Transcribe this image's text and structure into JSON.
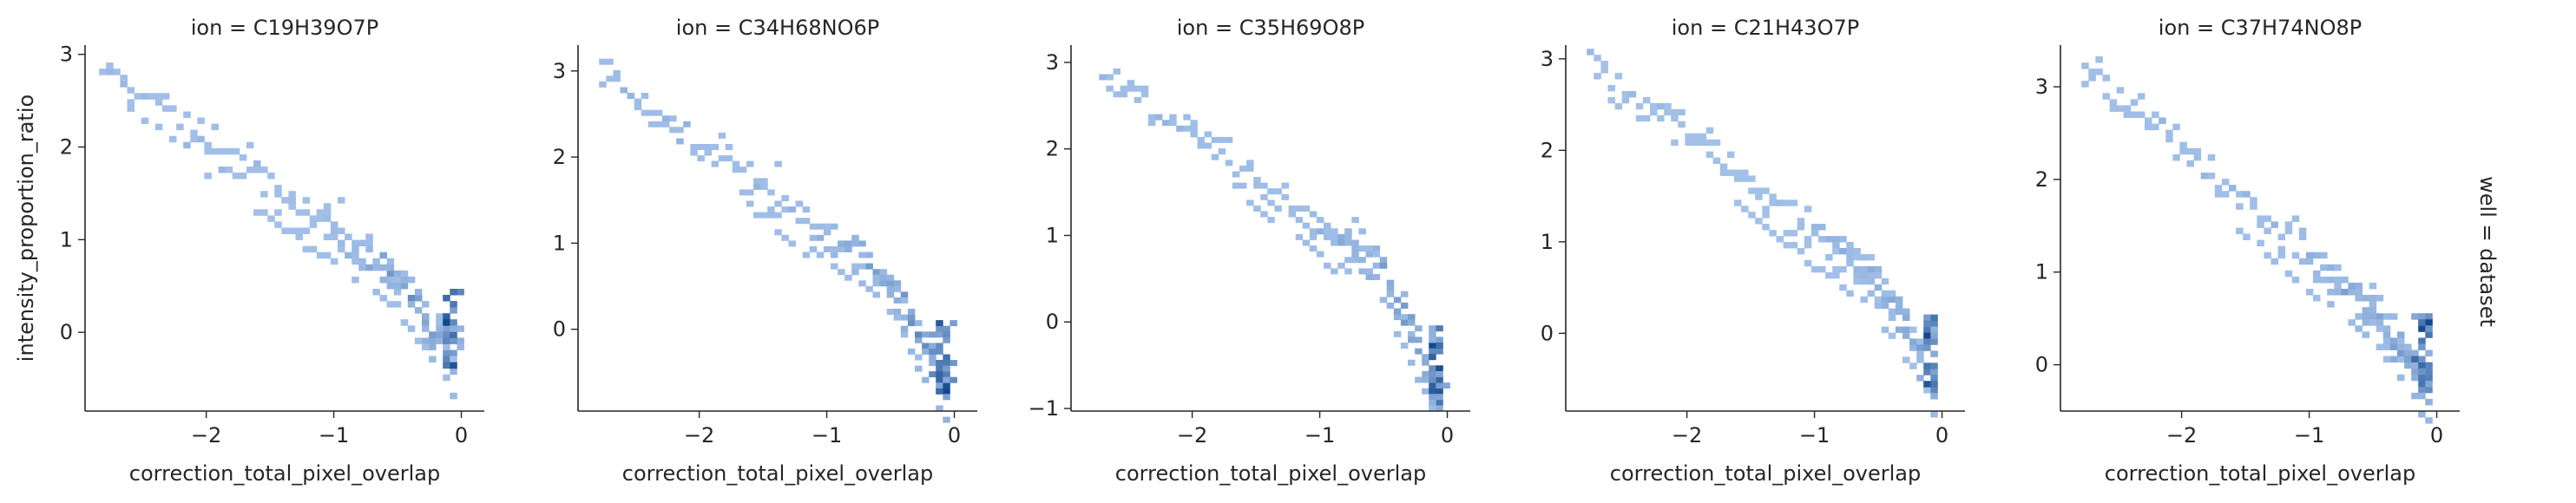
{
  "figure": {
    "row_label": "well = dataset"
  },
  "chart_data": [
    {
      "type": "heatmap",
      "title": "ion = C19H39O7P",
      "xlabel": "correction_total_pixel_overlap",
      "ylabel": "intensity_proportion_ratio",
      "xlim": [
        -2.95,
        0.18
      ],
      "ylim": [
        -0.85,
        3.1
      ],
      "xticks": [
        -2,
        -1,
        0
      ],
      "yticks": [
        0,
        1,
        2,
        3
      ],
      "start": [
        -2.8,
        2.85
      ],
      "hook": [
        -0.05,
        -0.3
      ],
      "lower_band_offset": -0.28,
      "color": "#1f77e4"
    },
    {
      "type": "heatmap",
      "title": "ion = C34H68NO6P",
      "xlabel": "correction_total_pixel_overlap",
      "ylabel": "",
      "xlim": [
        -2.95,
        0.18
      ],
      "ylim": [
        -0.95,
        3.3
      ],
      "xticks": [
        -2,
        -1,
        0
      ],
      "yticks": [
        0,
        1,
        2,
        3
      ],
      "start": [
        -2.75,
        2.95
      ],
      "hook": [
        -0.05,
        -0.7
      ],
      "lower_band_offset": -0.3,
      "color": "#1f77e4"
    },
    {
      "type": "heatmap",
      "title": "ion = C35H69O8P",
      "xlabel": "correction_total_pixel_overlap",
      "ylabel": "",
      "xlim": [
        -2.95,
        0.18
      ],
      "ylim": [
        -1.03,
        3.2
      ],
      "xticks": [
        -2,
        -1,
        0
      ],
      "yticks": [
        -1,
        0,
        1,
        2,
        3
      ],
      "start": [
        -2.7,
        2.9
      ],
      "hook": [
        -0.05,
        -0.85
      ],
      "lower_band_offset": -0.3,
      "color": "#1f77e4"
    },
    {
      "type": "heatmap",
      "title": "ion = C21H43O7P",
      "xlabel": "correction_total_pixel_overlap",
      "ylabel": "",
      "xlim": [
        -2.95,
        0.18
      ],
      "ylim": [
        -0.85,
        3.15
      ],
      "xticks": [
        -2,
        -1,
        0
      ],
      "yticks": [
        0,
        1,
        2,
        3
      ],
      "start": [
        -2.75,
        2.95
      ],
      "hook": [
        -0.05,
        -0.55
      ],
      "lower_band_offset": -0.3,
      "color": "#1f77e4"
    },
    {
      "type": "heatmap",
      "title": "ion = C37H74NO8P",
      "xlabel": "correction_total_pixel_overlap",
      "ylabel": "",
      "xlim": [
        -2.95,
        0.18
      ],
      "ylim": [
        -0.5,
        3.45
      ],
      "xticks": [
        -2,
        -1,
        0
      ],
      "yticks": [
        0,
        1,
        2,
        3
      ],
      "start": [
        -2.75,
        3.2
      ],
      "hook": [
        -0.05,
        -0.25
      ],
      "lower_band_offset": -0.3,
      "color": "#1f77e4"
    }
  ]
}
